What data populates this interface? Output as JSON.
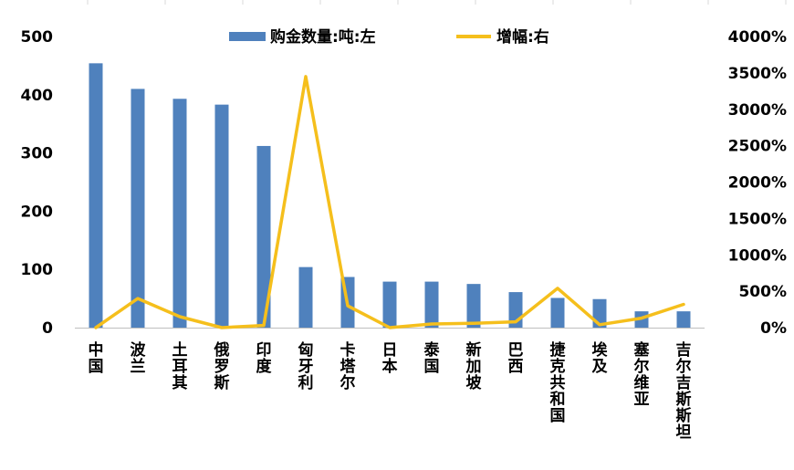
{
  "chart_data": {
    "type": "bar+line",
    "categories": [
      "中国",
      "波兰",
      "土耳其",
      "俄罗斯",
      "印度",
      "匈牙利",
      "卡塔尔",
      "日本",
      "泰国",
      "新加坡",
      "巴西",
      "捷克共和国",
      "埃及",
      "塞尔维亚",
      "吉尔吉斯斯坦"
    ],
    "series": [
      {
        "name": "购金数量:吨:左",
        "kind": "bar",
        "axis": "left",
        "color": "#4F81BD",
        "values": [
          454,
          410,
          393,
          383,
          312,
          104,
          87,
          79,
          79,
          75,
          61,
          51,
          49,
          28,
          28
        ]
      },
      {
        "name": "增幅:右",
        "kind": "line",
        "axis": "right",
        "color": "#F5BF1C",
        "values": [
          0,
          400,
          150,
          0,
          30,
          3450,
          300,
          0,
          50,
          60,
          80,
          540,
          40,
          130,
          320
        ]
      }
    ],
    "left_axis": {
      "min": 0,
      "max": 500,
      "ticks": [
        0,
        100,
        200,
        300,
        400,
        500
      ]
    },
    "right_axis": {
      "min": 0,
      "max": 4000,
      "ticks": [
        "0%",
        "500%",
        "1000%",
        "1500%",
        "2000%",
        "2500%",
        "3000%",
        "3500%",
        "4000%"
      ]
    },
    "legend_position": "top-center",
    "grid": false
  }
}
